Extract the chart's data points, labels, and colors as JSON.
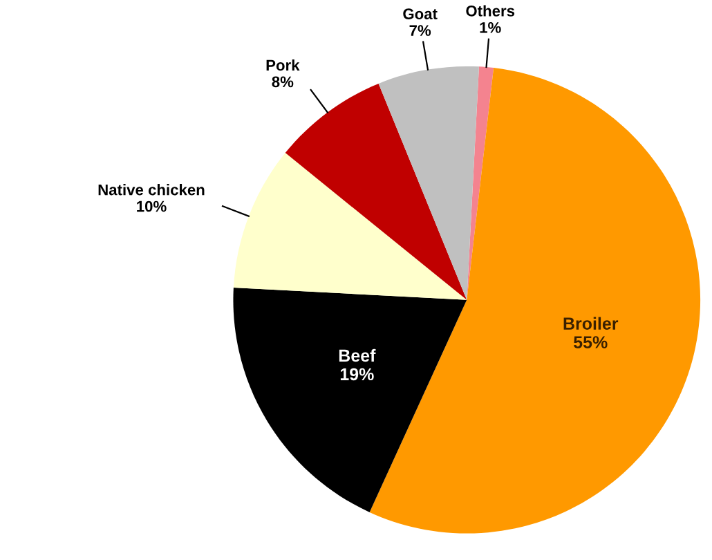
{
  "chart_data": {
    "type": "pie",
    "categories": [
      "Others",
      "Broiler",
      "Beef",
      "Native chicken",
      "Pork",
      "Goat"
    ],
    "values": [
      1,
      55,
      19,
      10,
      8,
      7
    ],
    "colors": [
      "#f4838f",
      "#ff9900",
      "#000000",
      "#ffffcc",
      "#c00000",
      "#c0c0c0"
    ],
    "value_labels": [
      "1%",
      "55%",
      "19%",
      "10%",
      "8%",
      "7%"
    ],
    "legend": false
  }
}
